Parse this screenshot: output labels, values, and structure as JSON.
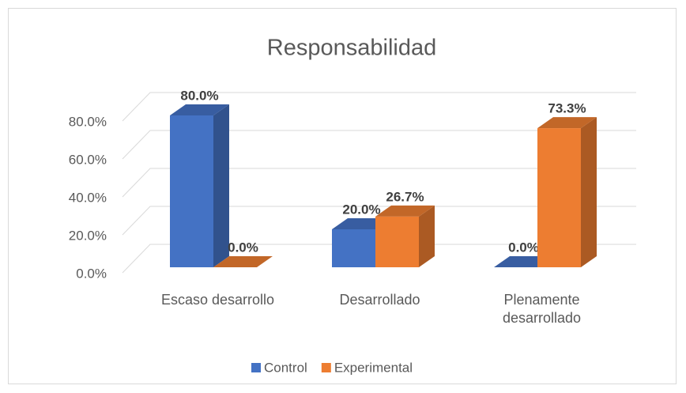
{
  "chart_data": {
    "type": "bar3d",
    "title": "Responsabilidad",
    "categories": [
      "Escaso desarrollo",
      "Desarrollado",
      "Plenamente desarrollado"
    ],
    "series": [
      {
        "name": "Control",
        "color": "#4472c4",
        "values": [
          80,
          20,
          0
        ],
        "value_labels": [
          "80.0%",
          "20.0%",
          "0.0%"
        ]
      },
      {
        "name": "Experimental",
        "color": "#ed7d31",
        "values": [
          0,
          26.7,
          73.3
        ],
        "value_labels": [
          "0.0%",
          "26.7%",
          "73.3%"
        ]
      }
    ],
    "ylim": [
      0,
      80
    ],
    "yticks": [
      {
        "value": 0,
        "label": "0.0%"
      },
      {
        "value": 20,
        "label": "20.0%"
      },
      {
        "value": 40,
        "label": "40.0%"
      },
      {
        "value": 60,
        "label": "60.0%"
      },
      {
        "value": 80,
        "label": "80.0%"
      }
    ],
    "grid": true,
    "legend": "bottom"
  }
}
